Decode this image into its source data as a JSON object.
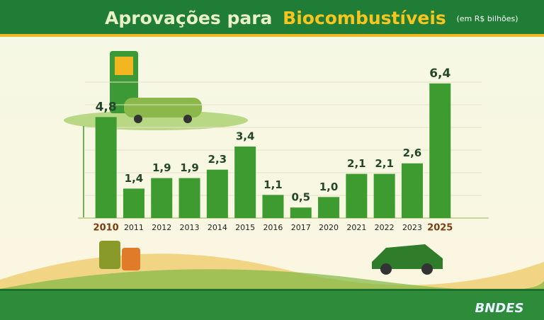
{
  "chart_data": {
    "type": "bar",
    "title": "Aprovações para",
    "title_highlight": "Biocombustíveis",
    "subtitle": "(em R$ bilhões)",
    "categories": [
      "2010",
      "2011",
      "2012",
      "2013",
      "2014",
      "2015",
      "2016",
      "2017",
      "2020",
      "2021",
      "2022",
      "2023",
      "2025"
    ],
    "values": [
      4.8,
      1.4,
      1.9,
      1.9,
      2.3,
      3.4,
      1.1,
      0.5,
      1.0,
      2.1,
      2.1,
      2.6,
      6.4
    ],
    "value_labels": [
      "4,8",
      "1,4",
      "1,9",
      "1,9",
      "2,3",
      "3,4",
      "1,1",
      "0,5",
      "1,0",
      "2,1",
      "2,1",
      "2,6",
      "6,4"
    ],
    "color": "#3d9b2f",
    "ylim": [
      0,
      7
    ],
    "grid": true,
    "brand": "BNDES"
  }
}
